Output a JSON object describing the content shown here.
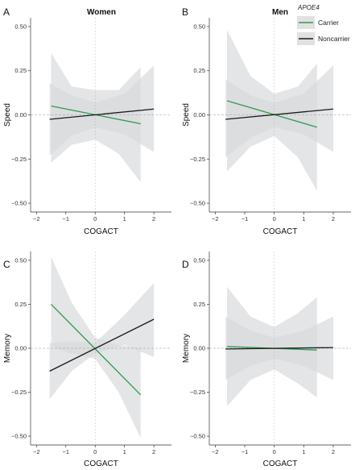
{
  "colors": {
    "carrier": "#2e9a4e",
    "noncarrier": "#1a1a1a",
    "ribbon": "#d9dadb",
    "zero_line": "#9a9a9a",
    "axis": "#333333"
  },
  "legend": {
    "title": "APOE4",
    "items": [
      {
        "label": "Carrier",
        "color_key": "carrier"
      },
      {
        "label": "Noncarrier",
        "color_key": "noncarrier"
      }
    ]
  },
  "chart_data": [
    {
      "panel": "A",
      "facet_title": "Women",
      "type": "line",
      "xlabel": "COGACT",
      "ylabel": "Speed",
      "xlim": [
        -2.2,
        2.6
      ],
      "ylim": [
        -0.55,
        0.55
      ],
      "xticks": [
        -2,
        -1,
        0,
        1,
        2
      ],
      "yticks": [
        -0.5,
        -0.25,
        0,
        0.25,
        0.5
      ],
      "series": [
        {
          "name": "Carrier",
          "x": [
            -1.5,
            1.55
          ],
          "y": [
            0.05,
            -0.05
          ],
          "ci_x": [
            -1.5,
            -0.8,
            0,
            0.8,
            1.55
          ],
          "ci_lower": [
            -0.27,
            -0.17,
            -0.14,
            -0.22,
            -0.38
          ],
          "ci_upper": [
            0.35,
            0.16,
            0.14,
            0.14,
            0.27
          ]
        },
        {
          "name": "Noncarrier",
          "x": [
            -1.55,
            2.0
          ],
          "y": [
            -0.025,
            0.033
          ],
          "ci_x": [
            -1.55,
            -0.8,
            0,
            1.0,
            2.0
          ],
          "ci_lower": [
            -0.23,
            -0.12,
            -0.07,
            -0.11,
            -0.21
          ],
          "ci_upper": [
            0.18,
            0.11,
            0.07,
            0.12,
            0.28
          ]
        }
      ]
    },
    {
      "panel": "B",
      "facet_title": "Men",
      "type": "line",
      "xlabel": "COGACT",
      "ylabel": "Speed",
      "xlim": [
        -2.2,
        2.6
      ],
      "ylim": [
        -0.55,
        0.55
      ],
      "xticks": [
        -2,
        -1,
        0,
        1,
        2
      ],
      "yticks": [
        -0.5,
        -0.25,
        0,
        0.25,
        0.5
      ],
      "series": [
        {
          "name": "Carrier",
          "x": [
            -1.6,
            1.45
          ],
          "y": [
            0.08,
            -0.07
          ],
          "ci_x": [
            -1.6,
            -0.8,
            0,
            0.8,
            1.45
          ],
          "ci_lower": [
            -0.32,
            -0.18,
            -0.12,
            -0.24,
            -0.43
          ],
          "ci_upper": [
            0.48,
            0.22,
            0.12,
            0.16,
            0.29
          ]
        },
        {
          "name": "Noncarrier",
          "x": [
            -1.65,
            2.0
          ],
          "y": [
            -0.025,
            0.033
          ],
          "ci_x": [
            -1.65,
            -0.8,
            0,
            1.0,
            2.0
          ],
          "ci_lower": [
            -0.24,
            -0.13,
            -0.07,
            -0.11,
            -0.21
          ],
          "ci_upper": [
            0.2,
            0.11,
            0.07,
            0.12,
            0.28
          ]
        }
      ]
    },
    {
      "panel": "C",
      "facet_title": "",
      "type": "line",
      "xlabel": "COGACT",
      "ylabel": "Memory",
      "xlim": [
        -2.2,
        2.6
      ],
      "ylim": [
        -0.55,
        0.55
      ],
      "xticks": [
        -2,
        -1,
        0,
        1,
        2
      ],
      "yticks": [
        -0.5,
        -0.25,
        0,
        0.25,
        0.5
      ],
      "series": [
        {
          "name": "Carrier",
          "x": [
            -1.5,
            1.55
          ],
          "y": [
            0.25,
            -0.265
          ],
          "ci_x": [
            -1.5,
            -0.8,
            0,
            0.8,
            1.55
          ],
          "ci_lower": [
            0.01,
            -0.03,
            -0.06,
            -0.25,
            -0.51
          ],
          "ci_upper": [
            0.52,
            0.26,
            0.06,
            0.02,
            0.0
          ]
        },
        {
          "name": "Noncarrier",
          "x": [
            -1.55,
            2.0
          ],
          "y": [
            -0.13,
            0.165
          ],
          "ci_x": [
            -1.55,
            -0.8,
            0,
            1.0,
            2.0
          ],
          "ci_lower": [
            -0.29,
            -0.13,
            -0.03,
            0.02,
            -0.05
          ],
          "ci_upper": [
            0.03,
            0.04,
            0.03,
            0.19,
            0.37
          ]
        }
      ]
    },
    {
      "panel": "D",
      "facet_title": "",
      "type": "line",
      "xlabel": "COGACT",
      "ylabel": "Memory",
      "xlim": [
        -2.2,
        2.6
      ],
      "ylim": [
        -0.55,
        0.55
      ],
      "xticks": [
        -2,
        -1,
        0,
        1,
        2
      ],
      "yticks": [
        -0.5,
        -0.25,
        0,
        0.25,
        0.5
      ],
      "series": [
        {
          "name": "Carrier",
          "x": [
            -1.6,
            1.45
          ],
          "y": [
            0.01,
            -0.01
          ],
          "ci_x": [
            -1.6,
            -0.8,
            0,
            0.8,
            1.45
          ],
          "ci_lower": [
            -0.33,
            -0.18,
            -0.12,
            -0.2,
            -0.28
          ],
          "ci_upper": [
            0.35,
            0.18,
            0.12,
            0.2,
            0.29
          ]
        },
        {
          "name": "Noncarrier",
          "x": [
            -1.65,
            2.0
          ],
          "y": [
            -0.004,
            0.004
          ],
          "ci_x": [
            -1.65,
            -0.8,
            0,
            1.0,
            2.0
          ],
          "ci_lower": [
            -0.18,
            -0.1,
            -0.06,
            -0.1,
            -0.18
          ],
          "ci_upper": [
            0.18,
            0.1,
            0.06,
            0.1,
            0.18
          ]
        }
      ]
    }
  ]
}
